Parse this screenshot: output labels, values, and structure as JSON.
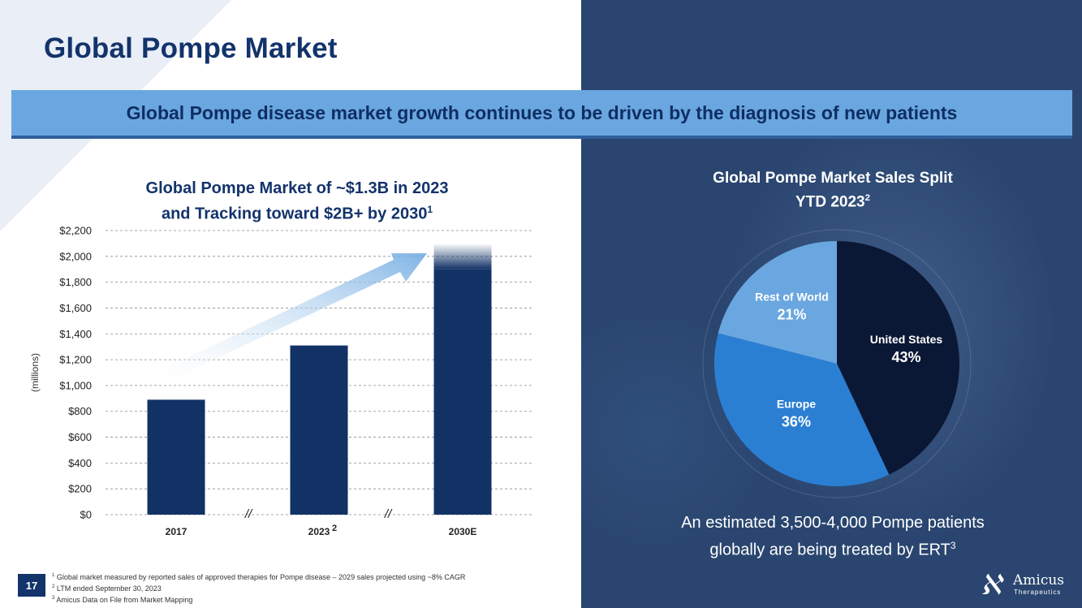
{
  "slide": {
    "title": "Global Pompe Market",
    "banner": "Global Pompe disease market growth continues to be driven by the diagnosis of new patients",
    "page_number": "17"
  },
  "bar_section": {
    "title_line1": "Global Pompe Market of ~$1.3B in 2023",
    "title_line2": "and Tracking toward $2B+ by 2030",
    "title_sup": "1"
  },
  "pie_section": {
    "title_line1": "Global Pompe Market Sales Split",
    "title_line2": "YTD 2023",
    "title_sup": "2",
    "caption_line1": "An estimated 3,500-4,000 Pompe patients",
    "caption_line2": "globally are being treated by ERT",
    "caption_sup": "3"
  },
  "footnotes": [
    {
      "sup": "1",
      "text": "Global market measured by reported sales of approved therapies for Pompe disease – 2029 sales projected using ~8% CAGR"
    },
    {
      "sup": "2",
      "text": "LTM ended September 30, 2023"
    },
    {
      "sup": "3",
      "text": "Amicus Data on File from Market Mapping"
    }
  ],
  "logo": {
    "name": "Amicus",
    "sub": "Therapeutics"
  },
  "colors": {
    "navy": "#13336b",
    "bar": "#123266",
    "banner": "#6aa7e0",
    "right_bg": "#2a4670",
    "pie_us": "#0b1835",
    "pie_europe": "#2b7fd3",
    "pie_row": "#6aa7e0"
  },
  "chart_data": [
    {
      "type": "bar",
      "categories": [
        "2017",
        "2023",
        "2030E"
      ],
      "category_sups": [
        "",
        "2",
        ""
      ],
      "values": [
        890,
        1310,
        2100
      ],
      "ylabel": "(millions)",
      "ylim": [
        0,
        2200
      ],
      "yticks": [
        0,
        200,
        400,
        600,
        800,
        1000,
        1200,
        1400,
        1600,
        1800,
        2000,
        2200
      ],
      "ytick_labels": [
        "$0",
        "$200",
        "$400",
        "$600",
        "$800",
        "$1,000",
        "$1,200",
        "$1,400",
        "$1,600",
        "$1,800",
        "$2,000",
        "$2,200"
      ],
      "axis_break_marks": [
        "//",
        "//"
      ],
      "grid": true
    },
    {
      "type": "pie",
      "title": "Global Pompe Market Sales Split YTD 2023",
      "slices": [
        {
          "label": "United States",
          "value": 43,
          "value_label": "43%"
        },
        {
          "label": "Europe",
          "value": 36,
          "value_label": "36%"
        },
        {
          "label": "Rest of World",
          "value": 21,
          "value_label": "21%"
        }
      ]
    }
  ]
}
